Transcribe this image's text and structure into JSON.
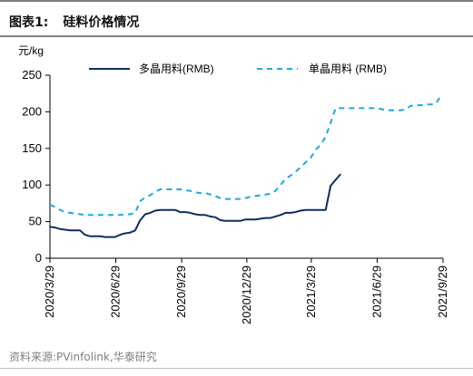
{
  "figure": {
    "label": "图表1:",
    "title": "硅料价格情况",
    "source": "资料来源:PVinfolink,华泰研究"
  },
  "colors": {
    "multi": "#0d2f5e",
    "mono": "#1ea7e0",
    "axis": "#000000",
    "rule": "#7f7f7f"
  },
  "chart_data": {
    "type": "line",
    "ylabel": "元/kg",
    "ylim": [
      0,
      250
    ],
    "yticks": [
      0,
      50,
      100,
      150,
      200,
      250
    ],
    "x_tick_labels": [
      "2020/3/29",
      "2020/6/29",
      "2020/9/29",
      "2020/12/29",
      "2021/3/29",
      "2021/6/29",
      "2021/9/29"
    ],
    "legend_position": "top",
    "series": [
      {
        "name": "多晶用料(RMB)",
        "style": "solid",
        "points": [
          [
            "2020-03-29",
            43
          ],
          [
            "2020-04-05",
            42
          ],
          [
            "2020-04-12",
            40
          ],
          [
            "2020-04-19",
            39
          ],
          [
            "2020-04-26",
            38
          ],
          [
            "2020-05-03",
            38
          ],
          [
            "2020-05-10",
            38
          ],
          [
            "2020-05-17",
            32
          ],
          [
            "2020-05-24",
            30
          ],
          [
            "2020-05-31",
            30
          ],
          [
            "2020-06-07",
            30
          ],
          [
            "2020-06-14",
            29
          ],
          [
            "2020-06-21",
            29
          ],
          [
            "2020-06-28",
            29
          ],
          [
            "2020-07-05",
            32
          ],
          [
            "2020-07-12",
            34
          ],
          [
            "2020-07-19",
            35
          ],
          [
            "2020-07-26",
            38
          ],
          [
            "2020-08-02",
            52
          ],
          [
            "2020-08-09",
            60
          ],
          [
            "2020-08-16",
            62
          ],
          [
            "2020-08-23",
            65
          ],
          [
            "2020-08-30",
            66
          ],
          [
            "2020-09-06",
            66
          ],
          [
            "2020-09-13",
            66
          ],
          [
            "2020-09-20",
            66
          ],
          [
            "2020-09-27",
            63
          ],
          [
            "2020-10-04",
            63
          ],
          [
            "2020-10-11",
            62
          ],
          [
            "2020-10-18",
            60
          ],
          [
            "2020-10-25",
            59
          ],
          [
            "2020-11-01",
            59
          ],
          [
            "2020-11-08",
            57
          ],
          [
            "2020-11-15",
            56
          ],
          [
            "2020-11-22",
            52
          ],
          [
            "2020-11-29",
            51
          ],
          [
            "2020-12-06",
            51
          ],
          [
            "2020-12-13",
            51
          ],
          [
            "2020-12-20",
            51
          ],
          [
            "2020-12-27",
            53
          ],
          [
            "2021-01-03",
            53
          ],
          [
            "2021-01-10",
            53
          ],
          [
            "2021-01-17",
            54
          ],
          [
            "2021-01-24",
            55
          ],
          [
            "2021-01-31",
            55
          ],
          [
            "2021-02-07",
            57
          ],
          [
            "2021-02-14",
            59
          ],
          [
            "2021-02-21",
            62
          ],
          [
            "2021-02-28",
            62
          ],
          [
            "2021-03-07",
            63
          ],
          [
            "2021-03-14",
            65
          ],
          [
            "2021-03-21",
            66
          ],
          [
            "2021-03-28",
            66
          ],
          [
            "2021-04-04",
            66
          ],
          [
            "2021-04-11",
            66
          ],
          [
            "2021-04-18",
            66
          ],
          [
            "2021-04-25",
            99
          ],
          [
            "2021-05-02",
            107
          ],
          [
            "2021-05-09",
            115
          ]
        ]
      },
      {
        "name": "单晶用料 (RMB)",
        "style": "dashed",
        "points": [
          [
            "2020-03-29",
            73
          ],
          [
            "2020-04-05",
            70
          ],
          [
            "2020-04-12",
            66
          ],
          [
            "2020-04-19",
            63
          ],
          [
            "2020-04-26",
            62
          ],
          [
            "2020-05-03",
            61
          ],
          [
            "2020-05-10",
            60
          ],
          [
            "2020-05-17",
            59
          ],
          [
            "2020-05-24",
            59
          ],
          [
            "2020-05-31",
            59
          ],
          [
            "2020-06-07",
            59
          ],
          [
            "2020-06-14",
            59
          ],
          [
            "2020-06-21",
            59
          ],
          [
            "2020-06-28",
            59
          ],
          [
            "2020-07-05",
            59
          ],
          [
            "2020-07-12",
            60
          ],
          [
            "2020-07-19",
            60
          ],
          [
            "2020-07-26",
            62
          ],
          [
            "2020-08-02",
            78
          ],
          [
            "2020-08-09",
            83
          ],
          [
            "2020-08-16",
            86
          ],
          [
            "2020-08-23",
            91
          ],
          [
            "2020-08-30",
            94
          ],
          [
            "2020-09-06",
            94
          ],
          [
            "2020-09-13",
            94
          ],
          [
            "2020-09-20",
            94
          ],
          [
            "2020-09-27",
            94
          ],
          [
            "2020-10-04",
            93
          ],
          [
            "2020-10-11",
            92
          ],
          [
            "2020-10-18",
            90
          ],
          [
            "2020-10-25",
            89
          ],
          [
            "2020-11-01",
            89
          ],
          [
            "2020-11-08",
            87
          ],
          [
            "2020-11-15",
            85
          ],
          [
            "2020-11-22",
            82
          ],
          [
            "2020-11-29",
            81
          ],
          [
            "2020-12-06",
            81
          ],
          [
            "2020-12-13",
            81
          ],
          [
            "2020-12-20",
            81
          ],
          [
            "2020-12-27",
            82
          ],
          [
            "2021-01-03",
            84
          ],
          [
            "2021-01-10",
            85
          ],
          [
            "2021-01-17",
            86
          ],
          [
            "2021-01-24",
            87
          ],
          [
            "2021-01-31",
            88
          ],
          [
            "2021-02-07",
            92
          ],
          [
            "2021-02-14",
            100
          ],
          [
            "2021-02-21",
            108
          ],
          [
            "2021-02-28",
            113
          ],
          [
            "2021-03-07",
            118
          ],
          [
            "2021-03-14",
            124
          ],
          [
            "2021-03-21",
            131
          ],
          [
            "2021-03-28",
            137
          ],
          [
            "2021-04-04",
            148
          ],
          [
            "2021-04-11",
            155
          ],
          [
            "2021-04-18",
            166
          ],
          [
            "2021-04-25",
            185
          ],
          [
            "2021-05-02",
            205
          ],
          [
            "2021-05-09",
            205
          ],
          [
            "2021-05-16",
            205
          ],
          [
            "2021-05-23",
            205
          ],
          [
            "2021-05-30",
            205
          ],
          [
            "2021-06-06",
            205
          ],
          [
            "2021-06-13",
            205
          ],
          [
            "2021-06-20",
            205
          ],
          [
            "2021-06-27",
            205
          ],
          [
            "2021-07-04",
            204
          ],
          [
            "2021-07-11",
            202
          ],
          [
            "2021-07-18",
            202
          ],
          [
            "2021-07-25",
            202
          ],
          [
            "2021-08-01",
            202
          ],
          [
            "2021-08-08",
            204
          ],
          [
            "2021-08-15",
            208
          ],
          [
            "2021-08-22",
            209
          ],
          [
            "2021-08-29",
            209
          ],
          [
            "2021-09-05",
            210
          ],
          [
            "2021-09-12",
            210
          ],
          [
            "2021-09-19",
            211
          ],
          [
            "2021-09-26",
            222
          ]
        ]
      }
    ]
  }
}
